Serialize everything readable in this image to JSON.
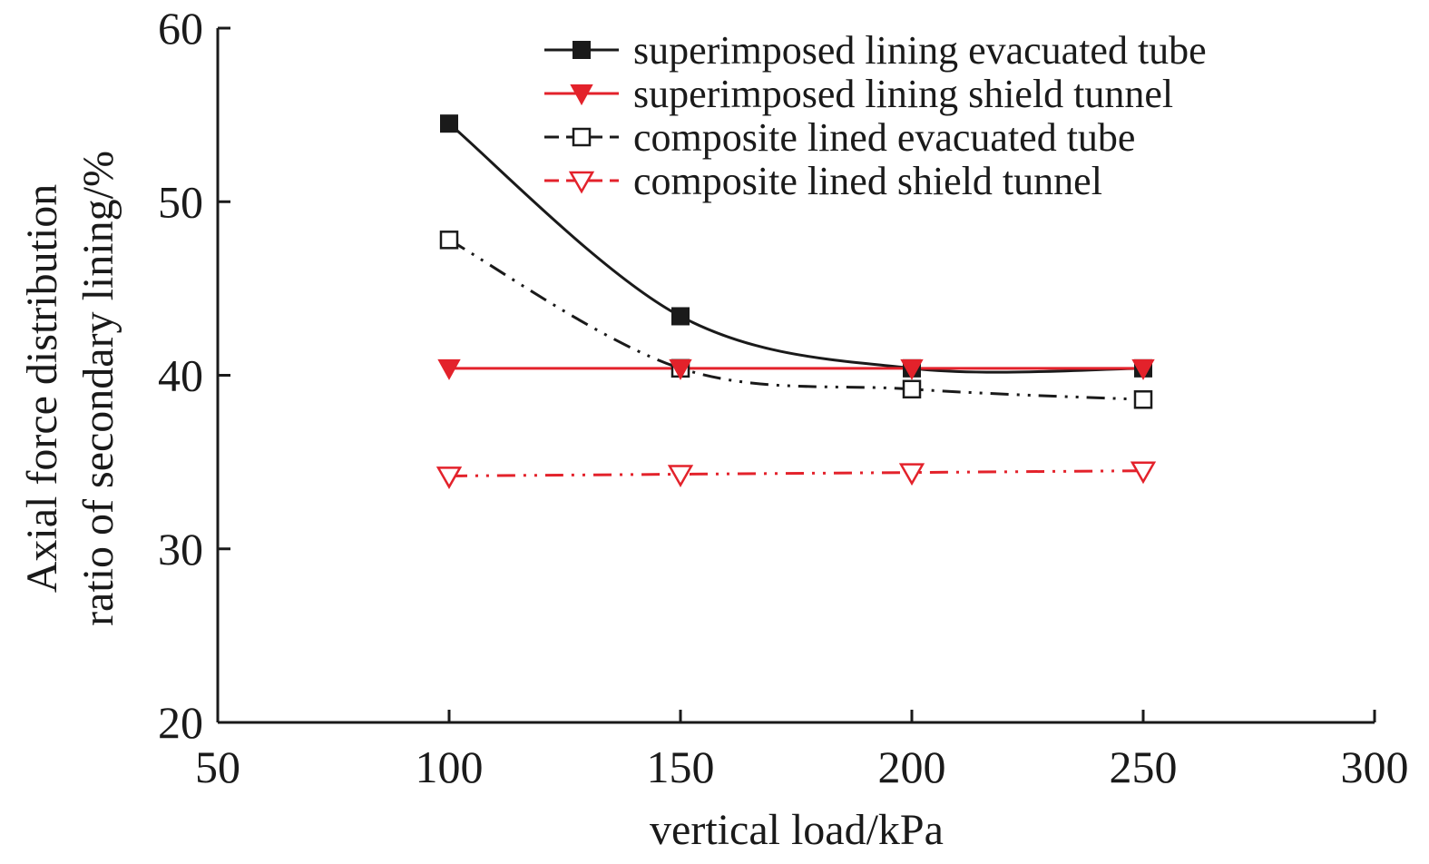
{
  "chart_data": {
    "type": "line",
    "title": "",
    "xlabel": "vertical load/kPa",
    "ylabel_lines": [
      "Axial force distribution",
      "ratio of secondary lining/%"
    ],
    "xlim": [
      50,
      300
    ],
    "ylim": [
      20,
      60
    ],
    "xticks": [
      50,
      100,
      150,
      200,
      250,
      300
    ],
    "yticks": [
      20,
      30,
      40,
      50,
      60
    ],
    "x": [
      100,
      150,
      200,
      250
    ],
    "grid": false,
    "legend_position": "top-right",
    "series": [
      {
        "name": "superimposed lining evacuated tube",
        "values": [
          54.5,
          43.4,
          40.4,
          40.4
        ],
        "color": "#1a1a1a",
        "marker": "square-filled",
        "line": "solid"
      },
      {
        "name": "superimposed lining shield tunnel",
        "values": [
          40.4,
          40.4,
          40.4,
          40.4
        ],
        "color": "#e3222b",
        "marker": "triangle-down-filled",
        "line": "solid"
      },
      {
        "name": "composite lined evacuated tube",
        "values": [
          47.8,
          40.4,
          39.2,
          38.6
        ],
        "color": "#1a1a1a",
        "marker": "square-open",
        "line": "dash-dot-dot"
      },
      {
        "name": "composite lined shield tunnel",
        "values": [
          34.2,
          34.3,
          34.4,
          34.5
        ],
        "color": "#e3222b",
        "marker": "triangle-down-open",
        "line": "dash-dot-dot"
      }
    ]
  }
}
